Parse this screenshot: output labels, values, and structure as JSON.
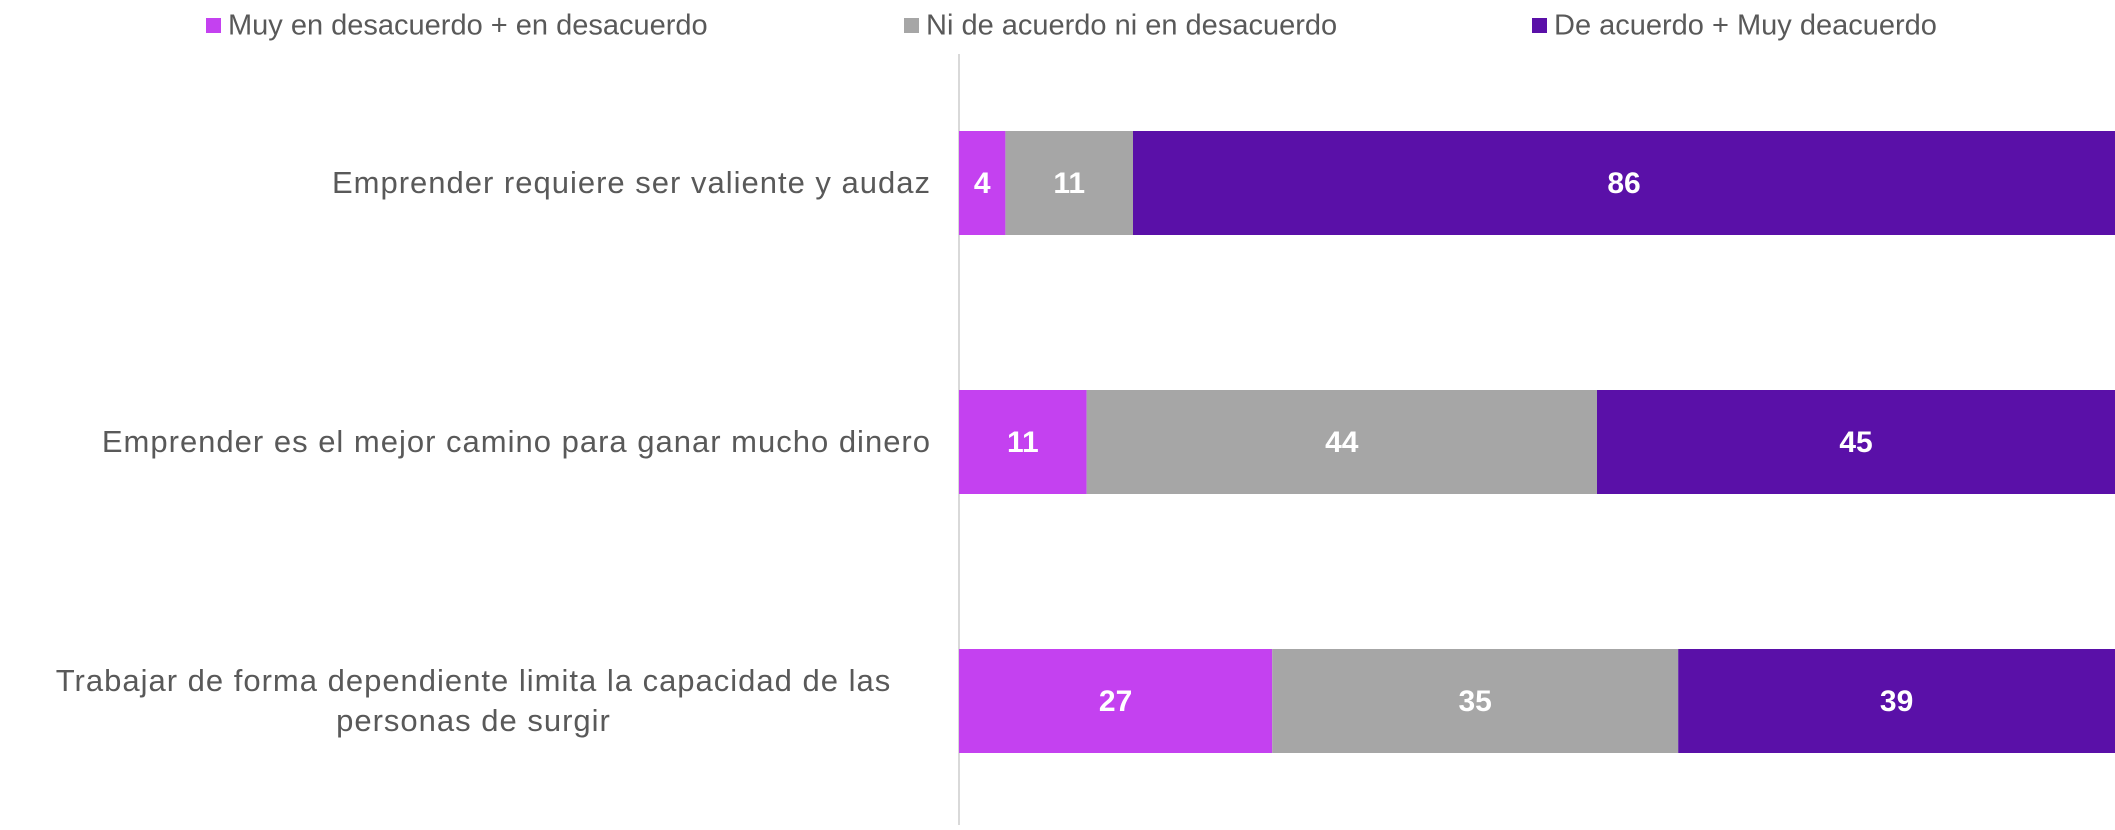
{
  "chart_data": {
    "type": "stacked-barh",
    "categories": [
      "Emprender requiere ser valiente y audaz",
      "Emprender es el mejor camino para ganar mucho dinero",
      "Trabajar de forma dependiente limita la capacidad de las personas de surgir"
    ],
    "series": [
      {
        "name": "Muy en desacuerdo + en desacuerdo",
        "color": "#c441f0",
        "values": [
          4,
          11,
          27
        ]
      },
      {
        "name": "Ni de acuerdo ni en desacuerdo",
        "color": "#a6a6a6",
        "values": [
          11,
          44,
          35
        ]
      },
      {
        "name": "De acuerdo + Muy deacuerdo",
        "color": "#5a10a8",
        "values": [
          86,
          45,
          39
        ]
      }
    ],
    "xlim": [
      0,
      100
    ],
    "legend": "top"
  }
}
